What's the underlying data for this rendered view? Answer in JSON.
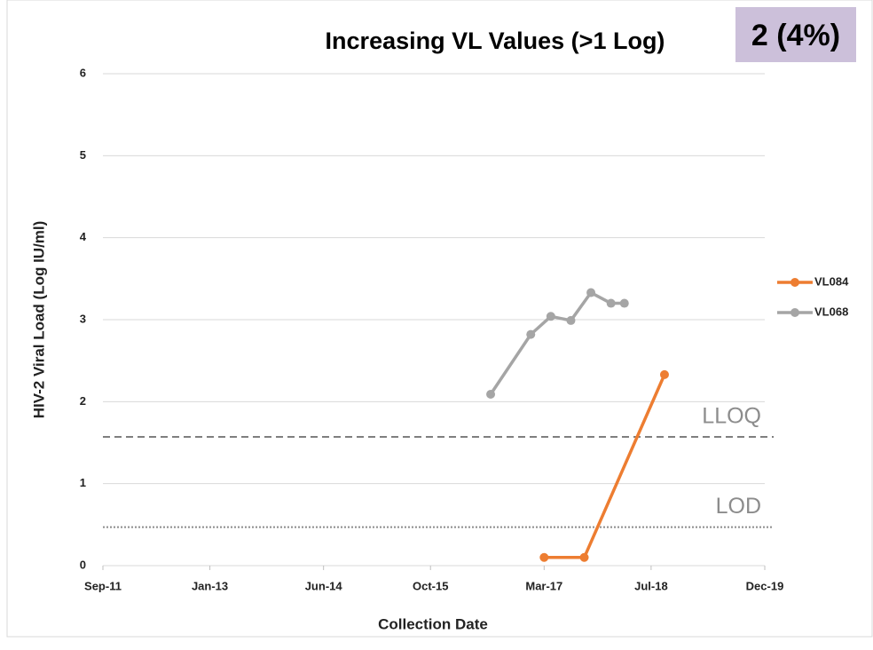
{
  "chart_data": {
    "type": "line",
    "title": "Increasing VL Values (>1 Log)",
    "badge": "2 (4%)",
    "x_label": "Collection Date",
    "y_label": "HIV-2 Viral Load (Log IU/ml)",
    "ylim": [
      0,
      6
    ],
    "yticks": [
      0,
      1,
      2,
      3,
      4,
      5,
      6
    ],
    "xlim": [
      "2011-09",
      "2019-12"
    ],
    "xticks": [
      {
        "value": "2011-09",
        "label": "Sep-11"
      },
      {
        "value": "2013-01",
        "label": "Jan-13"
      },
      {
        "value": "2014-06",
        "label": "Jun-14"
      },
      {
        "value": "2015-10",
        "label": "Oct-15"
      },
      {
        "value": "2017-03",
        "label": "Mar-17"
      },
      {
        "value": "2018-07",
        "label": "Jul-18"
      },
      {
        "value": "2019-12",
        "label": "Dec-19"
      }
    ],
    "grid": true,
    "legend": "right",
    "series": [
      {
        "name": "VL084",
        "color": "#ed7d31",
        "x": [
          "2017-03",
          "2017-09",
          "2018-09"
        ],
        "values": [
          0.1,
          0.1,
          2.33
        ]
      },
      {
        "name": "VL068",
        "color": "#a5a5a5",
        "x": [
          "2016-07",
          "2017-01",
          "2017-04",
          "2017-07",
          "2017-10",
          "2018-01",
          "2018-03"
        ],
        "values": [
          2.09,
          2.82,
          3.04,
          2.99,
          3.33,
          3.2,
          3.2
        ]
      }
    ],
    "reference_lines": [
      {
        "label": "LLOQ",
        "value": 1.57,
        "style": "dashed"
      },
      {
        "label": "LOD",
        "value": 0.47,
        "style": "dotted"
      }
    ]
  }
}
